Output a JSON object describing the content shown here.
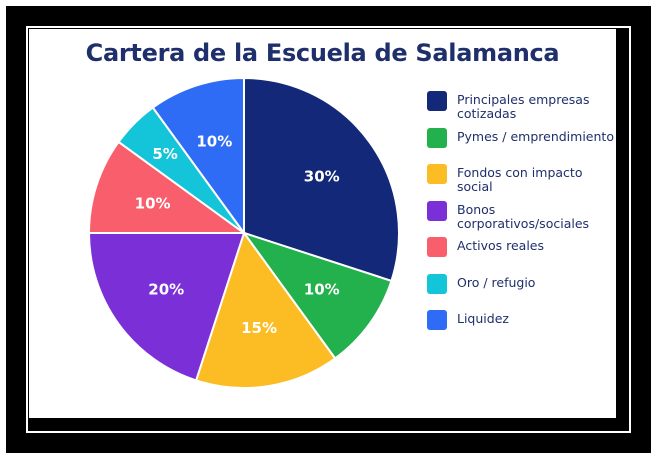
{
  "chart_data": {
    "type": "pie",
    "title": "Cartera de la Escuela de Salamanca",
    "slices": [
      {
        "label": "Principales empresas cotizadas",
        "value": 30,
        "display": "30%",
        "color": "#14287a"
      },
      {
        "label": "Pymes / emprendimiento",
        "value": 10,
        "display": "10%",
        "color": "#22b14c"
      },
      {
        "label": "Fondos con impacto social",
        "value": 15,
        "display": "15%",
        "color": "#fbbc24"
      },
      {
        "label": "Bonos corporativos/sociales",
        "value": 20,
        "display": "20%",
        "color": "#7b2fd6"
      },
      {
        "label": "Activos reales",
        "value": 10,
        "display": "10%",
        "color": "#f85e6c"
      },
      {
        "label": "Oro / refugio",
        "value": 5,
        "display": "5%",
        "color": "#14c4d8"
      },
      {
        "label": "Liquidez",
        "value": 10,
        "display": "10%",
        "color": "#2f6cf5"
      }
    ],
    "legend_position": "right"
  }
}
